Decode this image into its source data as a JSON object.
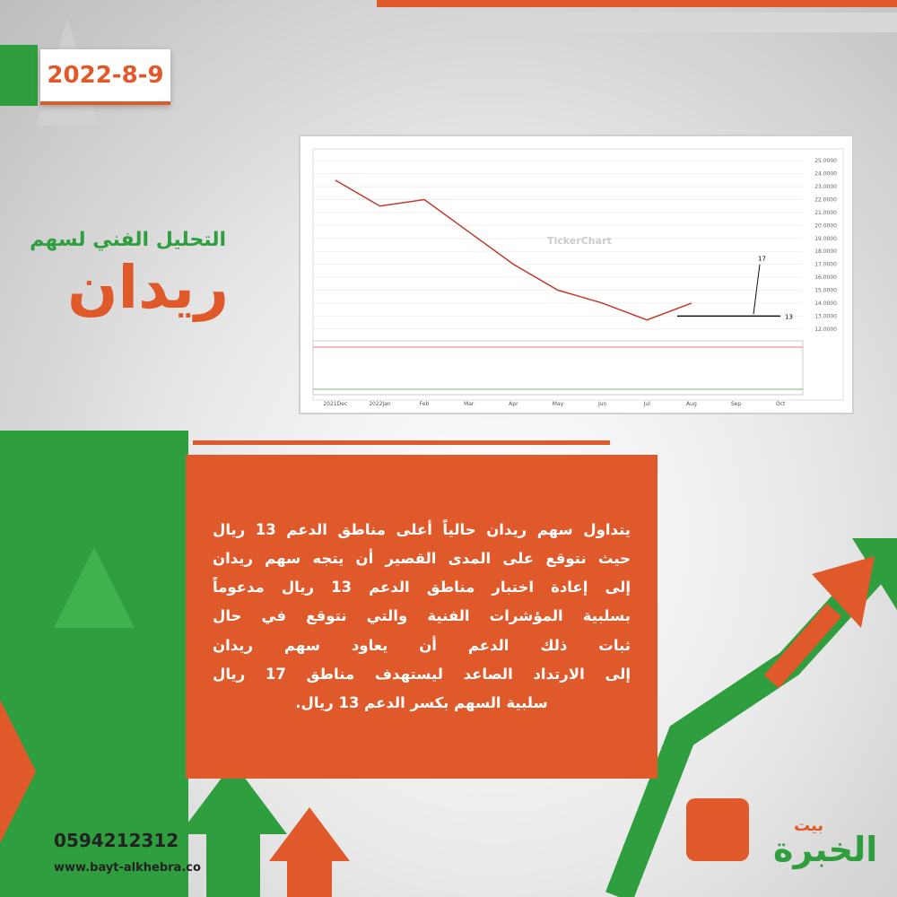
{
  "header": {
    "date": "2022-8-9",
    "subtitle": "التحليل الفني لسهم",
    "title": "ريدان"
  },
  "chart_data": {
    "type": "line",
    "watermark": "TickerChart",
    "color": "#c0392b",
    "categories": [
      "2021Dec",
      "2022Jan",
      "Feb",
      "Mar",
      "Apr",
      "May",
      "Jun",
      "Jul",
      "Aug",
      "Sep",
      "Oct"
    ],
    "values": [
      23.5,
      21.5,
      22,
      19.5,
      17,
      15,
      14,
      12.7,
      14,
      null,
      null
    ],
    "ylim": [
      11.5,
      25.5
    ],
    "yticks": [
      {
        "value": 12,
        "label": "12.0000"
      },
      {
        "value": 13,
        "label": "13.0000"
      },
      {
        "value": 14,
        "label": "14.0000"
      },
      {
        "value": 15,
        "label": "15.0000"
      },
      {
        "value": 16,
        "label": "16.0000"
      },
      {
        "value": 17,
        "label": "17.0000"
      },
      {
        "value": 18,
        "label": "18.0000"
      },
      {
        "value": 19,
        "label": "19.0000"
      },
      {
        "value": 20,
        "label": "20.0000"
      },
      {
        "value": 21,
        "label": "21.0000"
      },
      {
        "value": 22,
        "label": "22.0000"
      },
      {
        "value": 23,
        "label": "23.0000"
      },
      {
        "value": 24,
        "label": "24.0000"
      },
      {
        "value": 25,
        "label": "25.0000"
      }
    ],
    "support": 13,
    "target": 17
  },
  "body": {
    "lines": [
      "يتداول سهم ريدان حالياً أعلى مناطق الدعم 13 ريال",
      "حيث نتوقع على المدى القصير أن يتجه سهم ريدان",
      "إلى إعادة اختبار مناطق الدعم 13 ريال مدعوماً",
      "بسلبية المؤشرات الفنية والتي نتوقع في حال",
      "ثبات ذلك الدعم أن يعاود سهم ريدان",
      "إلى الارتداد الصاعد ليستهدف مناطق 17 ريال",
      "سلبية السهم بكسر الدعم 13 ريال."
    ]
  },
  "footer": {
    "phone": "0594212312",
    "website": "www.bayt-alkhebra.co",
    "logo_top": "بيت",
    "logo_main": "الخبرة"
  }
}
